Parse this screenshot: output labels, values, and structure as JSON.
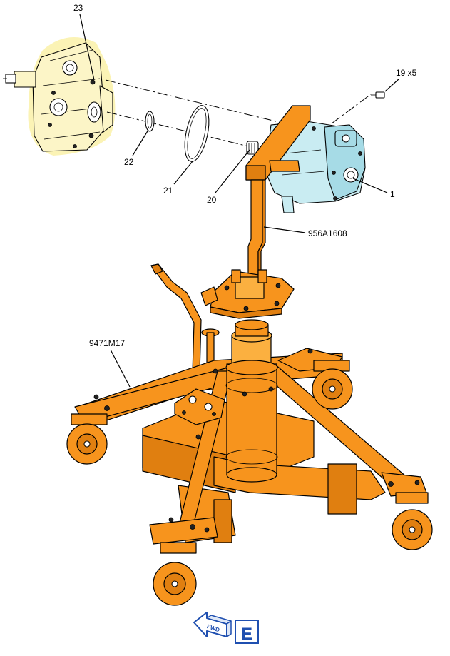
{
  "callouts": {
    "c23": "23",
    "c19": "19 x5",
    "c1": "1",
    "c20": "20",
    "c21": "21",
    "c22": "22",
    "c956": "956A1608",
    "c9471": "9471M17"
  },
  "fwd_label": "FWD",
  "view_label": "E",
  "colors": {
    "tool_orange": "#f7941d",
    "pump_blue": "#c9ecf2",
    "gearbox_yellow": "#fcf5c7",
    "view_box_blue": "#1f4fb0"
  }
}
